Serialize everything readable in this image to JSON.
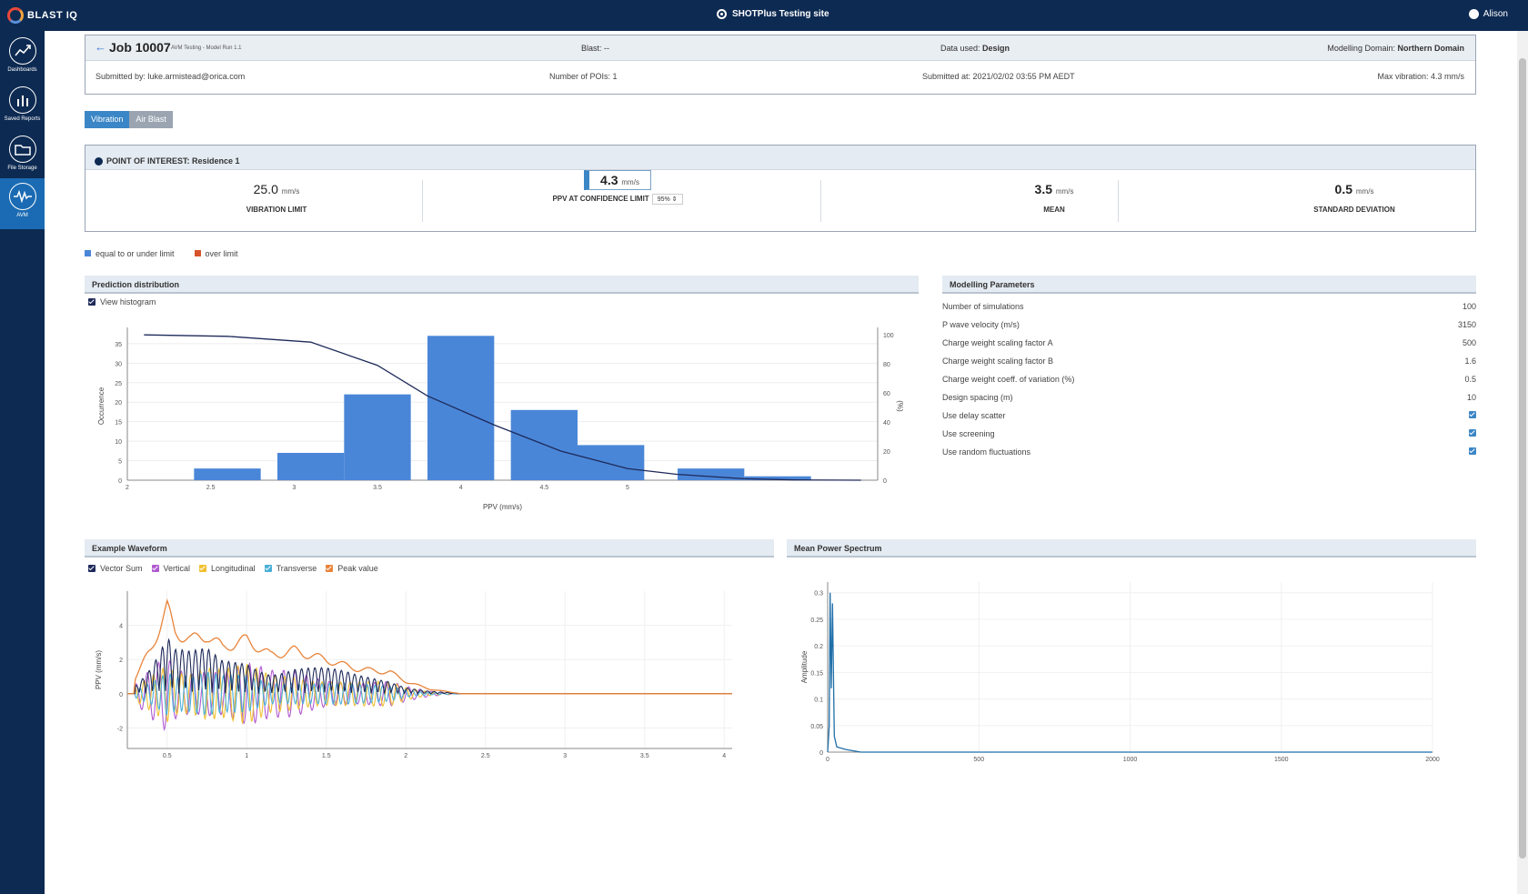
{
  "app": {
    "logo_text": "BLAST IQ",
    "site": "SHOTPlus Testing site",
    "user": "Alison"
  },
  "sidebar": {
    "items": [
      {
        "label": "Dashboards",
        "icon": "trend-icon"
      },
      {
        "label": "Saved Reports",
        "icon": "bar-chart-icon"
      },
      {
        "label": "File Storage",
        "icon": "folder-icon"
      },
      {
        "label": "AVM",
        "icon": "waveform-icon"
      }
    ]
  },
  "job": {
    "title": "Job 10007",
    "model_run": "AVM Testing - Model Run 1.1",
    "blast": "Blast: --",
    "data_used_label": "Data used:",
    "data_used": "Design",
    "domain_label": "Modelling Domain:",
    "domain": "Northern Domain",
    "submitted_by": "Submitted by: luke.armistead@orica.com",
    "pois": "Number of POIs: 1",
    "submitted_at": "Submitted at: 2021/02/02 03:55 PM AEDT",
    "max_vibration": "Max vibration: 4.3 mm/s"
  },
  "tabs": [
    "Vibration",
    "Air Blast"
  ],
  "poi": {
    "title": "POINT OF INTEREST: Residence 1",
    "stats": [
      {
        "value": "25.0",
        "unit": "mm/s",
        "label": "VIBRATION LIMIT"
      },
      {
        "value": "4.3",
        "unit": "mm/s",
        "label": "PPV AT CONFIDENCE LIMIT",
        "confidence": "95%"
      },
      {
        "value": "3.5",
        "unit": "mm/s",
        "label": "MEAN"
      },
      {
        "value": "0.5",
        "unit": "mm/s",
        "label": "STANDARD DEVIATION"
      }
    ]
  },
  "legend": {
    "under": "equal to or under limit",
    "over": "over limit",
    "under_color": "#4a86d8",
    "over_color": "#d8532a"
  },
  "prediction": {
    "title": "Prediction distribution",
    "view_histogram": "View histogram",
    "chart_data": {
      "type": "bar",
      "x": [
        2.5,
        3.0,
        3.5,
        4.0,
        4.5,
        5.0
      ],
      "bars": [
        {
          "x0": 2.4,
          "x1": 2.8,
          "value": 3
        },
        {
          "x0": 2.9,
          "x1": 3.3,
          "value": 7
        },
        {
          "x0": 3.3,
          "x1": 3.7,
          "value": 22
        },
        {
          "x0": 3.8,
          "x1": 4.2,
          "value": 37
        },
        {
          "x0": 4.3,
          "x1": 4.7,
          "value": 18
        },
        {
          "x0": 4.7,
          "x1": 5.1,
          "value": 9
        },
        {
          "x0": 5.3,
          "x1": 5.7,
          "value": 3
        },
        {
          "x0": 5.7,
          "x1": 6.1,
          "value": 1
        }
      ],
      "curve": [
        [
          2.1,
          100
        ],
        [
          2.6,
          99
        ],
        [
          3.1,
          95
        ],
        [
          3.5,
          79
        ],
        [
          3.8,
          58
        ],
        [
          4.2,
          38
        ],
        [
          4.6,
          20
        ],
        [
          5.0,
          8
        ],
        [
          5.3,
          4
        ],
        [
          5.7,
          1
        ],
        [
          6.0,
          0.2
        ],
        [
          6.4,
          0
        ]
      ],
      "xlabel": "PPV (mm/s)",
      "ylabel": "Occurrence",
      "y2label": "(%)",
      "xlim": [
        2.0,
        6.5
      ],
      "ylim": [
        0,
        38
      ],
      "y2lim": [
        0,
        102
      ],
      "xticks": [
        2,
        2.5,
        3,
        3.5,
        4,
        4.5,
        5
      ],
      "yticks": [
        0,
        5,
        10,
        15,
        20,
        25,
        30,
        35
      ],
      "y2ticks": [
        0,
        20,
        40,
        60,
        80,
        100
      ]
    }
  },
  "params": {
    "title": "Modelling Parameters",
    "rows": [
      {
        "label": "Number of simulations",
        "value": "100"
      },
      {
        "label": "P wave velocity (m/s)",
        "value": "3150"
      },
      {
        "label": "Charge weight scaling factor A",
        "value": "500"
      },
      {
        "label": "Charge weight scaling factor B",
        "value": "1.6"
      },
      {
        "label": "Charge weight coeff. of variation (%)",
        "value": "0.5"
      },
      {
        "label": "Design spacing (m)",
        "value": "10"
      },
      {
        "label": "Use delay scatter",
        "value": "checked"
      },
      {
        "label": "Use screening",
        "value": "checked"
      },
      {
        "label": "Use random fluctuations",
        "value": "checked"
      }
    ]
  },
  "waveform": {
    "title": "Example Waveform",
    "legend": [
      {
        "name": "Vector Sum",
        "color": "#1e2a5a"
      },
      {
        "name": "Vertical",
        "color": "#b05ad0"
      },
      {
        "name": "Longitudinal",
        "color": "#f0c030"
      },
      {
        "name": "Transverse",
        "color": "#4ab0d8"
      },
      {
        "name": "Peak value",
        "color": "#e8843a"
      }
    ],
    "chart_data": {
      "type": "line",
      "ylabel": "PPV (mm/s)",
      "xlim": [
        0.25,
        4.05
      ],
      "ylim": [
        -3.2,
        6
      ],
      "xticks": [
        0.5,
        1,
        1.5,
        2,
        2.5,
        3,
        3.5,
        4
      ],
      "yticks": [
        -2,
        0,
        2,
        4
      ],
      "peak_env": [
        [
          0.3,
          1
        ],
        [
          0.4,
          3
        ],
        [
          0.5,
          5.5
        ],
        [
          0.55,
          4
        ],
        [
          0.65,
          3.5
        ],
        [
          0.75,
          3.8
        ],
        [
          0.85,
          3
        ],
        [
          1.0,
          3.5
        ],
        [
          1.15,
          2.5
        ],
        [
          1.3,
          2.8
        ],
        [
          1.5,
          2.2
        ],
        [
          1.7,
          1.6
        ],
        [
          1.9,
          1.4
        ],
        [
          2.0,
          0.8
        ],
        [
          2.15,
          0.3
        ],
        [
          2.35,
          0
        ],
        [
          4.05,
          0
        ]
      ]
    }
  },
  "spectrum": {
    "title": "Mean Power Spectrum",
    "chart_data": {
      "type": "line",
      "ylabel": "Amplitude",
      "xlim": [
        0,
        2000
      ],
      "ylim": [
        0,
        0.32
      ],
      "xticks": [
        0,
        500,
        1000,
        1500,
        2000
      ],
      "yticks": [
        0,
        0.05,
        0.1,
        0.15,
        0.2,
        0.25,
        0.3
      ],
      "points": [
        [
          0,
          0
        ],
        [
          5,
          0.05
        ],
        [
          8,
          0.3
        ],
        [
          12,
          0.12
        ],
        [
          16,
          0.28
        ],
        [
          22,
          0.03
        ],
        [
          30,
          0.01
        ],
        [
          60,
          0.005
        ],
        [
          110,
          0
        ],
        [
          2000,
          0
        ]
      ]
    }
  }
}
